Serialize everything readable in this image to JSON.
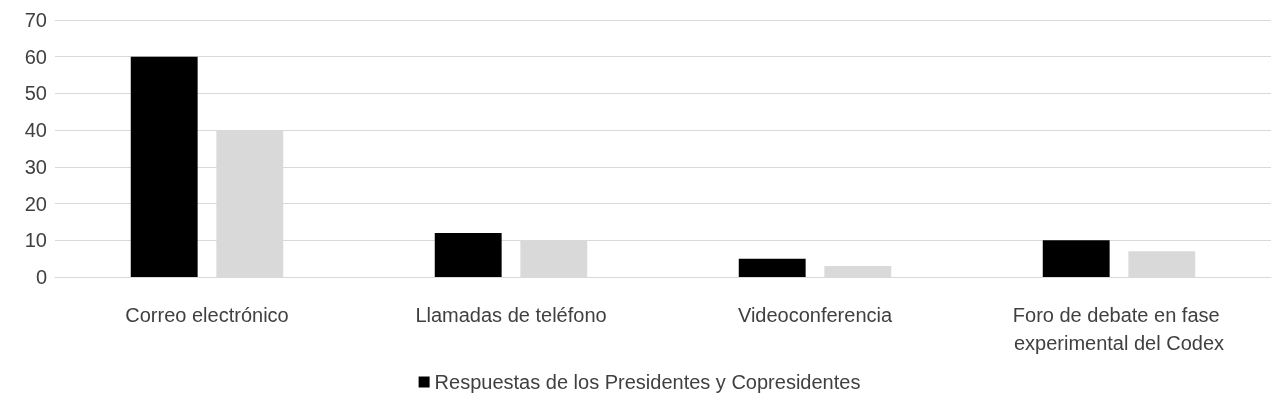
{
  "chart_data": {
    "type": "bar",
    "categories": [
      "Correo electrónico",
      "Llamadas de teléfono",
      "Videoconferencia",
      "Foro de debate en fase experimental del Codex"
    ],
    "series": [
      {
        "name": "Respuestas de los Presidentes y Copresidentes",
        "color": "#000000",
        "values": [
          60,
          12,
          5,
          10
        ]
      },
      {
        "color": "#d9d9d9",
        "values": [
          40,
          10,
          3,
          7
        ]
      }
    ],
    "ylim": [
      0,
      70
    ],
    "yticks": [
      0,
      10,
      20,
      30,
      40,
      50,
      60,
      70
    ],
    "grid": "y",
    "legend": "bottom"
  }
}
